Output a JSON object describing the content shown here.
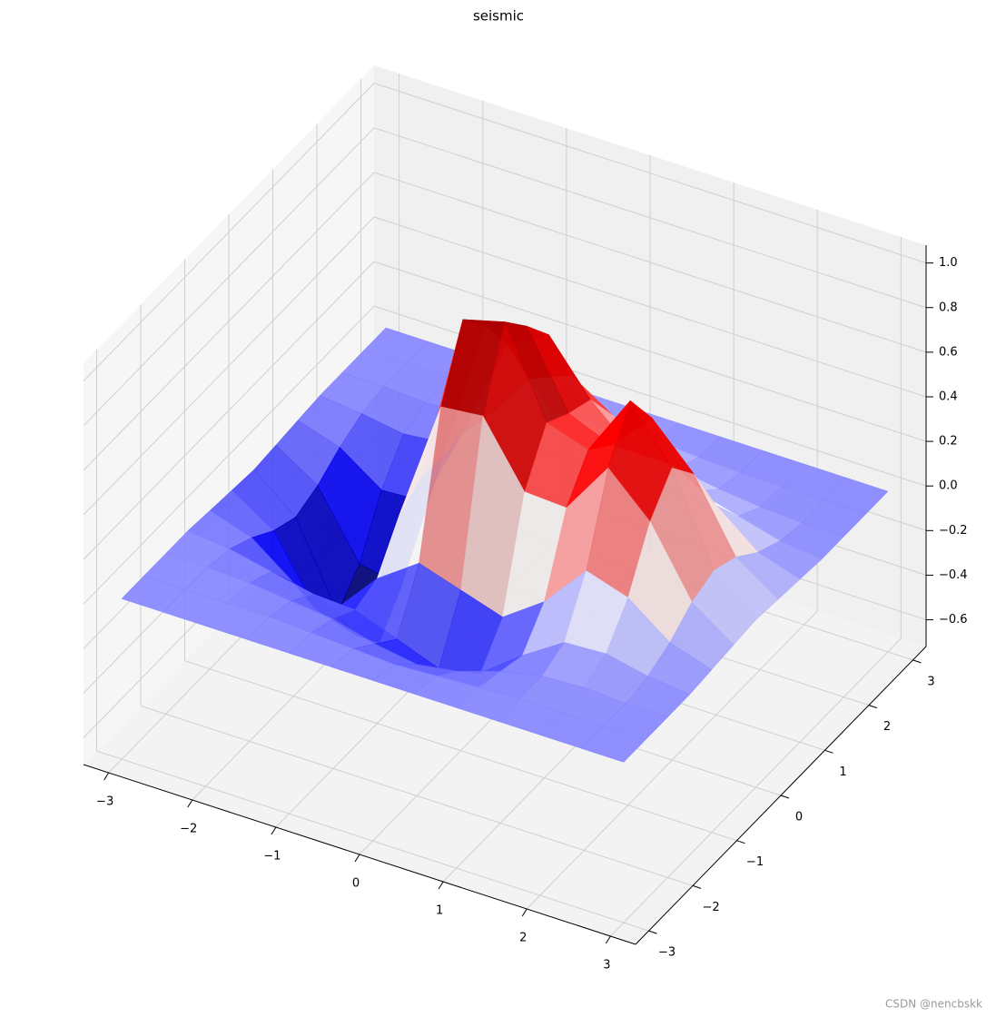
{
  "chart_data": {
    "type": "surface",
    "title": "seismic",
    "colormap": "seismic",
    "grid": true,
    "watermark": "CSDN @nencbskk",
    "x": [
      -3,
      -2.5,
      -2,
      -1.5,
      -1,
      -0.5,
      0,
      0.5,
      1,
      1.5,
      2,
      2.5,
      3
    ],
    "y": [
      -3,
      -2.5,
      -2,
      -1.5,
      -1,
      -0.5,
      0,
      0.5,
      1,
      1.5,
      2,
      2.5,
      3
    ],
    "z": [
      [
        0,
        0,
        0,
        0,
        0,
        0,
        0,
        0,
        0,
        0,
        0,
        0,
        0
      ],
      [
        0,
        0,
        0,
        0,
        -0.01,
        -0.02,
        -0.03,
        -0.02,
        -0.01,
        0,
        0,
        0,
        0
      ],
      [
        0,
        0,
        -0.01,
        -0.03,
        -0.05,
        -0.1,
        -0.13,
        -0.1,
        -0.04,
        0,
        0.01,
        0,
        0
      ],
      [
        0,
        -0.02,
        -0.06,
        -0.1,
        -0.11,
        -0.18,
        -0.25,
        -0.21,
        -0.07,
        0.05,
        0.06,
        0.02,
        0
      ],
      [
        -0.01,
        -0.07,
        -0.21,
        -0.27,
        -0.07,
        0.06,
        0,
        -0.06,
        0.07,
        0.27,
        0.21,
        0.07,
        0.01
      ],
      [
        -0.02,
        -0.14,
        -0.43,
        -0.49,
        0.11,
        0.66,
        0.68,
        0.4,
        0.39,
        0.63,
        0.45,
        0.15,
        0.02
      ],
      [
        -0.03,
        -0.18,
        -0.55,
        -0.62,
        0.18,
        0.95,
        1,
        0.61,
        0.55,
        0.83,
        0.59,
        0.19,
        0.03
      ],
      [
        -0.02,
        -0.14,
        -0.43,
        -0.47,
        0.18,
        0.82,
        0.88,
        0.55,
        0.47,
        0.65,
        0.46,
        0.15,
        0.02
      ],
      [
        -0.01,
        -0.07,
        -0.2,
        -0.19,
        0.2,
        0.64,
        0.74,
        0.51,
        0.34,
        0.34,
        0.22,
        0.07,
        0.01
      ],
      [
        0,
        -0.02,
        -0.05,
        -0.03,
        0.15,
        0.38,
        0.46,
        0.34,
        0.19,
        0.12,
        0.07,
        0.02,
        0
      ],
      [
        0,
        0,
        -0.01,
        0,
        0.06,
        0.13,
        0.16,
        0.13,
        0.06,
        0.03,
        0.01,
        0,
        0
      ],
      [
        0,
        0,
        0,
        0,
        0.01,
        0.03,
        0.03,
        0.02,
        0.01,
        0,
        0,
        0,
        0
      ],
      [
        0,
        0,
        0,
        0,
        0,
        0,
        0,
        0,
        0,
        0,
        0,
        0,
        0
      ]
    ],
    "xlim": [
      -3.3,
      3.3
    ],
    "ylim": [
      -3.3,
      3.3
    ],
    "zlim": [
      -0.72,
      1.08
    ],
    "xticks": [
      {
        "value": -3,
        "label": "−3"
      },
      {
        "value": -2,
        "label": "−2"
      },
      {
        "value": -1,
        "label": "−1"
      },
      0,
      1,
      2,
      3
    ],
    "yticks": [
      {
        "value": -3,
        "label": "−3"
      },
      {
        "value": -2,
        "label": "−2"
      },
      {
        "value": -1,
        "label": "−1"
      },
      0,
      1,
      2,
      3
    ],
    "zticks": [
      {
        "value": -0.6,
        "label": "−0.6"
      },
      {
        "value": -0.4,
        "label": "−0.4"
      },
      {
        "value": -0.2,
        "label": "−0.2"
      },
      {
        "value": 0,
        "label": "0.0"
      },
      0.2,
      0.4,
      0.6,
      0.8,
      {
        "value": 1,
        "label": "1.0"
      }
    ]
  }
}
